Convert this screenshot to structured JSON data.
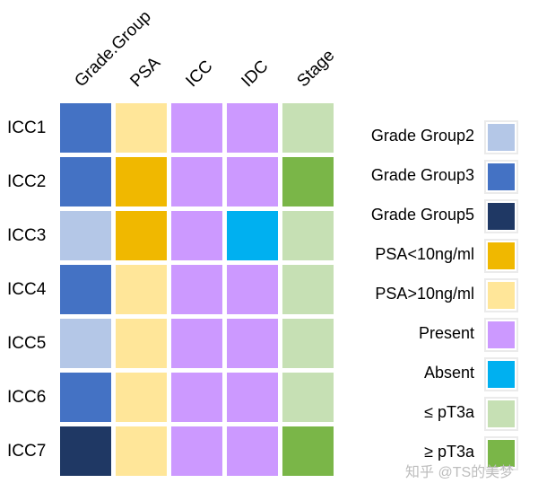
{
  "chart_data": {
    "type": "heatmap",
    "columns": [
      "Grade.Group",
      "PSA",
      "ICC",
      "IDC",
      "Stage"
    ],
    "rows": [
      "ICC1",
      "ICC2",
      "ICC3",
      "ICC4",
      "ICC5",
      "ICC6",
      "ICC7"
    ],
    "categories": [
      "Grade Group2",
      "Grade Group3",
      "Grade Group5",
      "PSA<10ng/ml",
      "PSA>10ng/ml",
      "Present",
      "Absent",
      "≤ pT3a",
      "≥ pT3a"
    ],
    "colors": {
      "Grade Group2": "#b4c7e7",
      "Grade Group3": "#4472c4",
      "Grade Group5": "#1f3864",
      "PSA<10ng/ml": "#f0b800",
      "PSA>10ng/ml": "#ffe699",
      "Present": "#cc99ff",
      "Absent": "#00b0f0",
      "≤ pT3a": "#c6e0b4",
      "≥ pT3a": "#7ab648"
    },
    "cells": [
      [
        "Grade Group3",
        "PSA>10ng/ml",
        "Present",
        "Present",
        "≤ pT3a"
      ],
      [
        "Grade Group3",
        "PSA<10ng/ml",
        "Present",
        "Present",
        "≥ pT3a"
      ],
      [
        "Grade Group2",
        "PSA<10ng/ml",
        "Present",
        "Absent",
        "≤ pT3a"
      ],
      [
        "Grade Group3",
        "PSA>10ng/ml",
        "Present",
        "Present",
        "≤ pT3a"
      ],
      [
        "Grade Group2",
        "PSA>10ng/ml",
        "Present",
        "Present",
        "≤ pT3a"
      ],
      [
        "Grade Group3",
        "PSA>10ng/ml",
        "Present",
        "Present",
        "≤ pT3a"
      ],
      [
        "Grade Group5",
        "PSA>10ng/ml",
        "Present",
        "Present",
        "≥ pT3a"
      ]
    ],
    "legend_position": "right"
  },
  "watermark": "知乎 @TS的美梦"
}
